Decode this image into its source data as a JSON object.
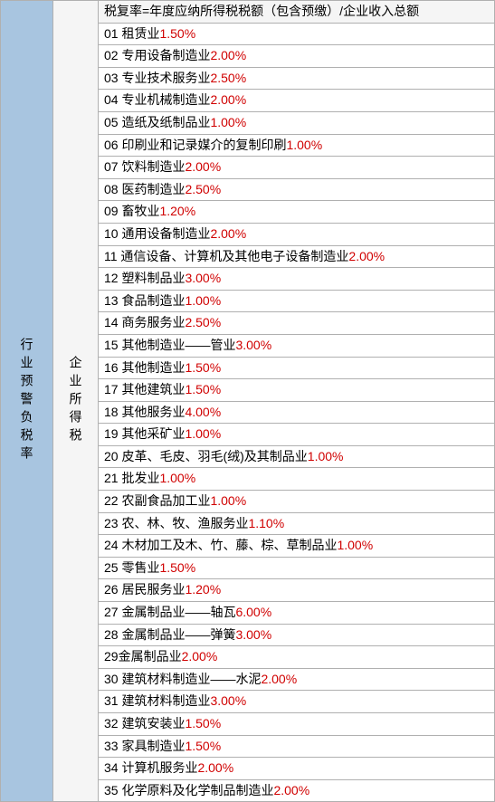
{
  "leftLabel": "行业预警负税率",
  "midLabel": "企业所得税",
  "headerText": "税复率=年度应纳所得税税额（包含预缴）/企业收入总额",
  "rows": [
    {
      "num": "01",
      "name": "租赁业",
      "rate": "1.50%"
    },
    {
      "num": "02",
      "name": "专用设备制造业",
      "rate": "2.00%"
    },
    {
      "num": "03",
      "name": "专业技术服务业",
      "rate": "2.50%"
    },
    {
      "num": "04",
      "name": "专业机械制造业",
      "rate": "2.00%"
    },
    {
      "num": "05",
      "name": "造纸及纸制品业",
      "rate": "1.00%"
    },
    {
      "num": "06",
      "name": "印刷业和记录媒介的复制印刷",
      "rate": "1.00%"
    },
    {
      "num": "07",
      "name": "饮料制造业",
      "rate": "2.00%"
    },
    {
      "num": "08",
      "name": "医药制造业",
      "rate": "2.50%"
    },
    {
      "num": "09",
      "name": "畜牧业",
      "rate": "1.20%"
    },
    {
      "num": "10",
      "name": "通用设备制造业",
      "rate": "2.00%"
    },
    {
      "num": "11",
      "name": "通信设备、计算机及其他电子设备制造业",
      "rate": "2.00%"
    },
    {
      "num": "12",
      "name": "塑料制品业",
      "rate": "3.00%"
    },
    {
      "num": "13",
      "name": "食品制造业",
      "rate": "1.00%"
    },
    {
      "num": "14",
      "name": "商务服务业",
      "rate": "2.50%"
    },
    {
      "num": "15",
      "name": "其他制造业——管业",
      "rate": "3.00%"
    },
    {
      "num": "16",
      "name": "其他制造业",
      "rate": "1.50%"
    },
    {
      "num": "17",
      "name": "其他建筑业",
      "rate": "1.50%"
    },
    {
      "num": "18",
      "name": "其他服务业",
      "rate": "4.00%"
    },
    {
      "num": "19",
      "name": "其他采矿业",
      "rate": "1.00%"
    },
    {
      "num": "20",
      "name": "皮革、毛皮、羽毛(绒)及其制品业",
      "rate": "1.00%"
    },
    {
      "num": "21",
      "name": "批发业",
      "rate": "1.00%"
    },
    {
      "num": "22",
      "name": "农副食品加工业",
      "rate": "1.00%"
    },
    {
      "num": "23",
      "name": "农、林、牧、渔服务业",
      "rate": "1.10%"
    },
    {
      "num": "24",
      "name": "木材加工及木、竹、藤、棕、草制品业",
      "rate": "1.00%"
    },
    {
      "num": "25",
      "name": "零售业",
      "rate": "1.50%"
    },
    {
      "num": "26",
      "name": "居民服务业",
      "rate": "1.20%"
    },
    {
      "num": "27",
      "name": "金属制品业——轴瓦",
      "rate": "6.00%"
    },
    {
      "num": "28",
      "name": "金属制品业——弹簧",
      "rate": "3.00%"
    },
    {
      "num": "29",
      "name": "金属制品业",
      "rate": "2.00%",
      "noSpace": true
    },
    {
      "num": "30",
      "name": "建筑材料制造业——水泥",
      "rate": "2.00%"
    },
    {
      "num": "31",
      "name": "建筑材料制造业",
      "rate": "3.00%"
    },
    {
      "num": "32",
      "name": "建筑安装业",
      "rate": "1.50%"
    },
    {
      "num": "33",
      "name": "家具制造业",
      "rate": "1.50%"
    },
    {
      "num": "34",
      "name": "计算机服务业",
      "rate": "2.00%"
    },
    {
      "num": "35",
      "name": "化学原料及化学制品制造业",
      "rate": "2.00%"
    }
  ],
  "colors": {
    "leftBg": "#a8c5e0",
    "midBg": "#f5f5f5",
    "border": "#b0b0b0",
    "rateColor": "#d00000",
    "textColor": "#000000"
  }
}
